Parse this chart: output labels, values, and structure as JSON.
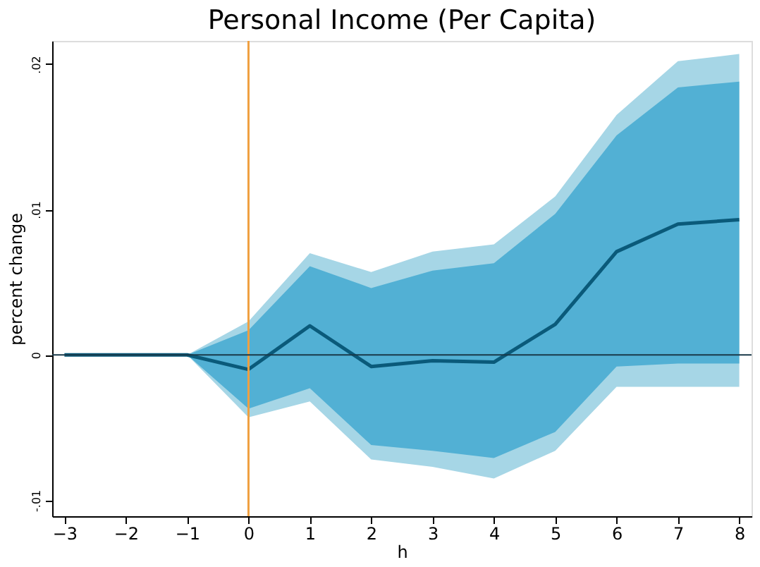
{
  "chart_data": {
    "type": "line",
    "title": "Personal Income (Per Capita)",
    "xlabel": "h",
    "ylabel": "percent change",
    "x": [
      -3,
      -2,
      -1,
      0,
      1,
      2,
      3,
      4,
      5,
      6,
      7,
      8
    ],
    "series": [
      {
        "type": "area",
        "color": "#a6d6e6",
        "values": [
          null,
          null,
          null,
          null,
          null,
          null,
          null,
          null,
          null,
          null,
          null,
          null
        ],
        "lower": [
          0,
          0,
          0,
          -0.0043,
          -0.0032,
          -0.0072,
          -0.0077,
          -0.0085,
          -0.0066,
          -0.0022,
          -0.0022,
          -0.0022
        ],
        "upper": [
          0,
          0,
          0,
          0.0023,
          0.007,
          0.0057,
          0.0071,
          0.0076,
          0.0109,
          0.0165,
          0.0202,
          0.0207
        ]
      },
      {
        "type": "area",
        "color": "#52b0d4",
        "values": [
          null,
          null,
          null,
          null,
          null,
          null,
          null,
          null,
          null,
          null,
          null,
          null
        ],
        "lower": [
          0,
          0,
          0,
          -0.0037,
          -0.0023,
          -0.0062,
          -0.0066,
          -0.0071,
          -0.0053,
          -0.0008,
          -0.0006,
          -0.0006
        ],
        "upper": [
          0,
          0,
          0,
          0.0017,
          0.0061,
          0.0046,
          0.0058,
          0.0063,
          0.0097,
          0.0151,
          0.0184,
          0.0188
        ]
      },
      {
        "color": "#0a5a7a",
        "values": [
          0,
          0,
          0,
          -0.001,
          0.002,
          -0.0008,
          -0.0004,
          -0.0005,
          0.0021,
          0.0071,
          0.009,
          0.0093
        ]
      }
    ],
    "xlim": [
      -3.2,
      8.2
    ],
    "xticks": [
      -3,
      -2,
      -1,
      0,
      1,
      2,
      3,
      4,
      5,
      6,
      7,
      8
    ],
    "ylim": [
      -0.0111,
      0.0216
    ],
    "yticks": [
      {
        "value": -0.01,
        "label": "-.01"
      },
      {
        "value": 0,
        "label": "0"
      },
      {
        "value": 0.01,
        "label": ".01"
      },
      {
        "value": 0.02,
        "label": ".02"
      }
    ],
    "ref_lines": [
      {
        "axis": "x",
        "value": 0,
        "color": "#f0a040"
      },
      {
        "axis": "y",
        "value": 0,
        "color": "#1a3a4a"
      }
    ],
    "grid": false,
    "line_style": "solid",
    "marker": "none"
  }
}
